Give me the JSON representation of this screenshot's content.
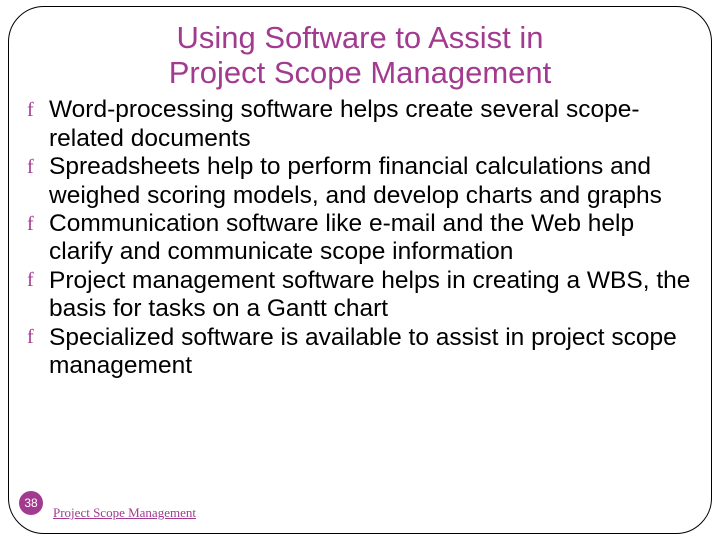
{
  "title_line1": "Using Software to Assist in",
  "title_line2": "Project Scope Management",
  "title_color": "#a23b8f",
  "title_fontsize": 31,
  "body_color": "#000000",
  "body_fontsize": 24.5,
  "bullet_mark": "f",
  "bullet_color": "#a23b8f",
  "frame_border_color": "#000000",
  "background_color": "#ffffff",
  "bullets": {
    "b0": "Word-processing software helps create several scope-related documents",
    "b1": "Spreadsheets help to perform financial calculations and weighed scoring models, and develop charts and graphs",
    "b2": "Communication software like e-mail and the Web help clarify and communicate scope information",
    "b3": "Project management software helps in creating a WBS, the basis for tasks on a Gantt chart",
    "b4": "Specialized software is available to assist in project scope management"
  },
  "page_number": "38",
  "page_badge_bg": "#a23b8f",
  "page_badge_fg": "#ffffff",
  "footer_text": "Project Scope Management",
  "footer_color": "#a23b8f"
}
